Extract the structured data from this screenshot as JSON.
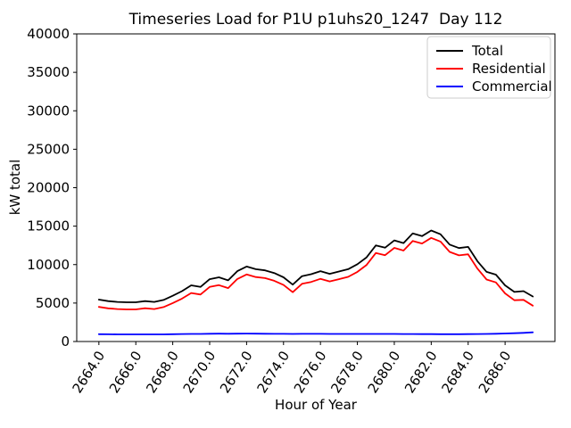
{
  "figure": {
    "background": "#ffffff",
    "spine_color": "#000000"
  },
  "chart_data": {
    "type": "line",
    "title": "Timeseries Load for P1U p1uhs20_1247  Day 112",
    "xlabel": "Hour of Year",
    "ylabel": "kW total",
    "xlim": [
      2662.8,
      2688.7
    ],
    "ylim": [
      0,
      40000
    ],
    "grid": false,
    "legend_position": "upper right",
    "x_ticks": [
      {
        "value": 2664,
        "label": "2664.0"
      },
      {
        "value": 2666,
        "label": "2666.0"
      },
      {
        "value": 2668,
        "label": "2668.0"
      },
      {
        "value": 2670,
        "label": "2670.0"
      },
      {
        "value": 2672,
        "label": "2672.0"
      },
      {
        "value": 2674,
        "label": "2674.0"
      },
      {
        "value": 2676,
        "label": "2676.0"
      },
      {
        "value": 2678,
        "label": "2678.0"
      },
      {
        "value": 2680,
        "label": "2680.0"
      },
      {
        "value": 2682,
        "label": "2682.0"
      },
      {
        "value": 2684,
        "label": "2684.0"
      },
      {
        "value": 2686,
        "label": "2686.0"
      }
    ],
    "y_ticks": [
      {
        "value": 0,
        "label": "0"
      },
      {
        "value": 5000,
        "label": "5000"
      },
      {
        "value": 10000,
        "label": "10000"
      },
      {
        "value": 15000,
        "label": "15000"
      },
      {
        "value": 20000,
        "label": "20000"
      },
      {
        "value": 25000,
        "label": "25000"
      },
      {
        "value": 30000,
        "label": "30000"
      },
      {
        "value": 35000,
        "label": "35000"
      },
      {
        "value": 40000,
        "label": "40000"
      }
    ],
    "x": [
      2664.0,
      2664.5,
      2665.0,
      2665.5,
      2666.0,
      2666.5,
      2667.0,
      2667.5,
      2668.0,
      2668.5,
      2669.0,
      2669.5,
      2670.0,
      2670.5,
      2671.0,
      2671.5,
      2672.0,
      2672.5,
      2673.0,
      2673.5,
      2674.0,
      2674.5,
      2675.0,
      2675.5,
      2676.0,
      2676.5,
      2677.0,
      2677.5,
      2678.0,
      2678.5,
      2679.0,
      2679.5,
      2680.0,
      2680.5,
      2681.0,
      2681.5,
      2682.0,
      2682.5,
      2683.0,
      2683.5,
      2684.0,
      2684.5,
      2685.0,
      2685.5,
      2686.0,
      2686.5,
      2687.0,
      2687.5
    ],
    "series": [
      {
        "name": "Total",
        "color": "#000000",
        "values": [
          5450,
          5250,
          5150,
          5100,
          5100,
          5250,
          5150,
          5400,
          5950,
          6550,
          7300,
          7100,
          8100,
          8350,
          7950,
          9150,
          9750,
          9400,
          9250,
          8900,
          8350,
          7400,
          8500,
          8750,
          9150,
          8800,
          9100,
          9400,
          10050,
          10950,
          12500,
          12200,
          13150,
          12800,
          14050,
          13700,
          14430,
          13950,
          12600,
          12150,
          12300,
          10450,
          9050,
          8700,
          7300,
          6450,
          6550,
          5850
        ]
      },
      {
        "name": "Residential",
        "color": "#ff0000",
        "values": [
          4500,
          4310,
          4220,
          4170,
          4175,
          4320,
          4225,
          4470,
          5000,
          5580,
          6310,
          6110,
          7090,
          7330,
          6940,
          8130,
          8720,
          8380,
          8240,
          7900,
          7350,
          6410,
          7500,
          7750,
          8150,
          7810,
          8110,
          8410,
          9060,
          9960,
          11510,
          11220,
          12170,
          11830,
          13080,
          12740,
          13470,
          13000,
          11650,
          11200,
          11340,
          9480,
          8060,
          7690,
          6260,
          5370,
          5420,
          4660
        ]
      },
      {
        "name": "Commercial",
        "color": "#0000ff",
        "values": [
          950,
          940,
          930,
          930,
          925,
          930,
          925,
          930,
          950,
          970,
          990,
          990,
          1010,
          1020,
          1010,
          1020,
          1030,
          1020,
          1010,
          1000,
          1000,
          990,
          1000,
          1000,
          1000,
          990,
          990,
          990,
          990,
          990,
          990,
          980,
          980,
          970,
          970,
          960,
          960,
          950,
          950,
          950,
          960,
          970,
          990,
          1010,
          1040,
          1080,
          1130,
          1190
        ]
      }
    ]
  }
}
